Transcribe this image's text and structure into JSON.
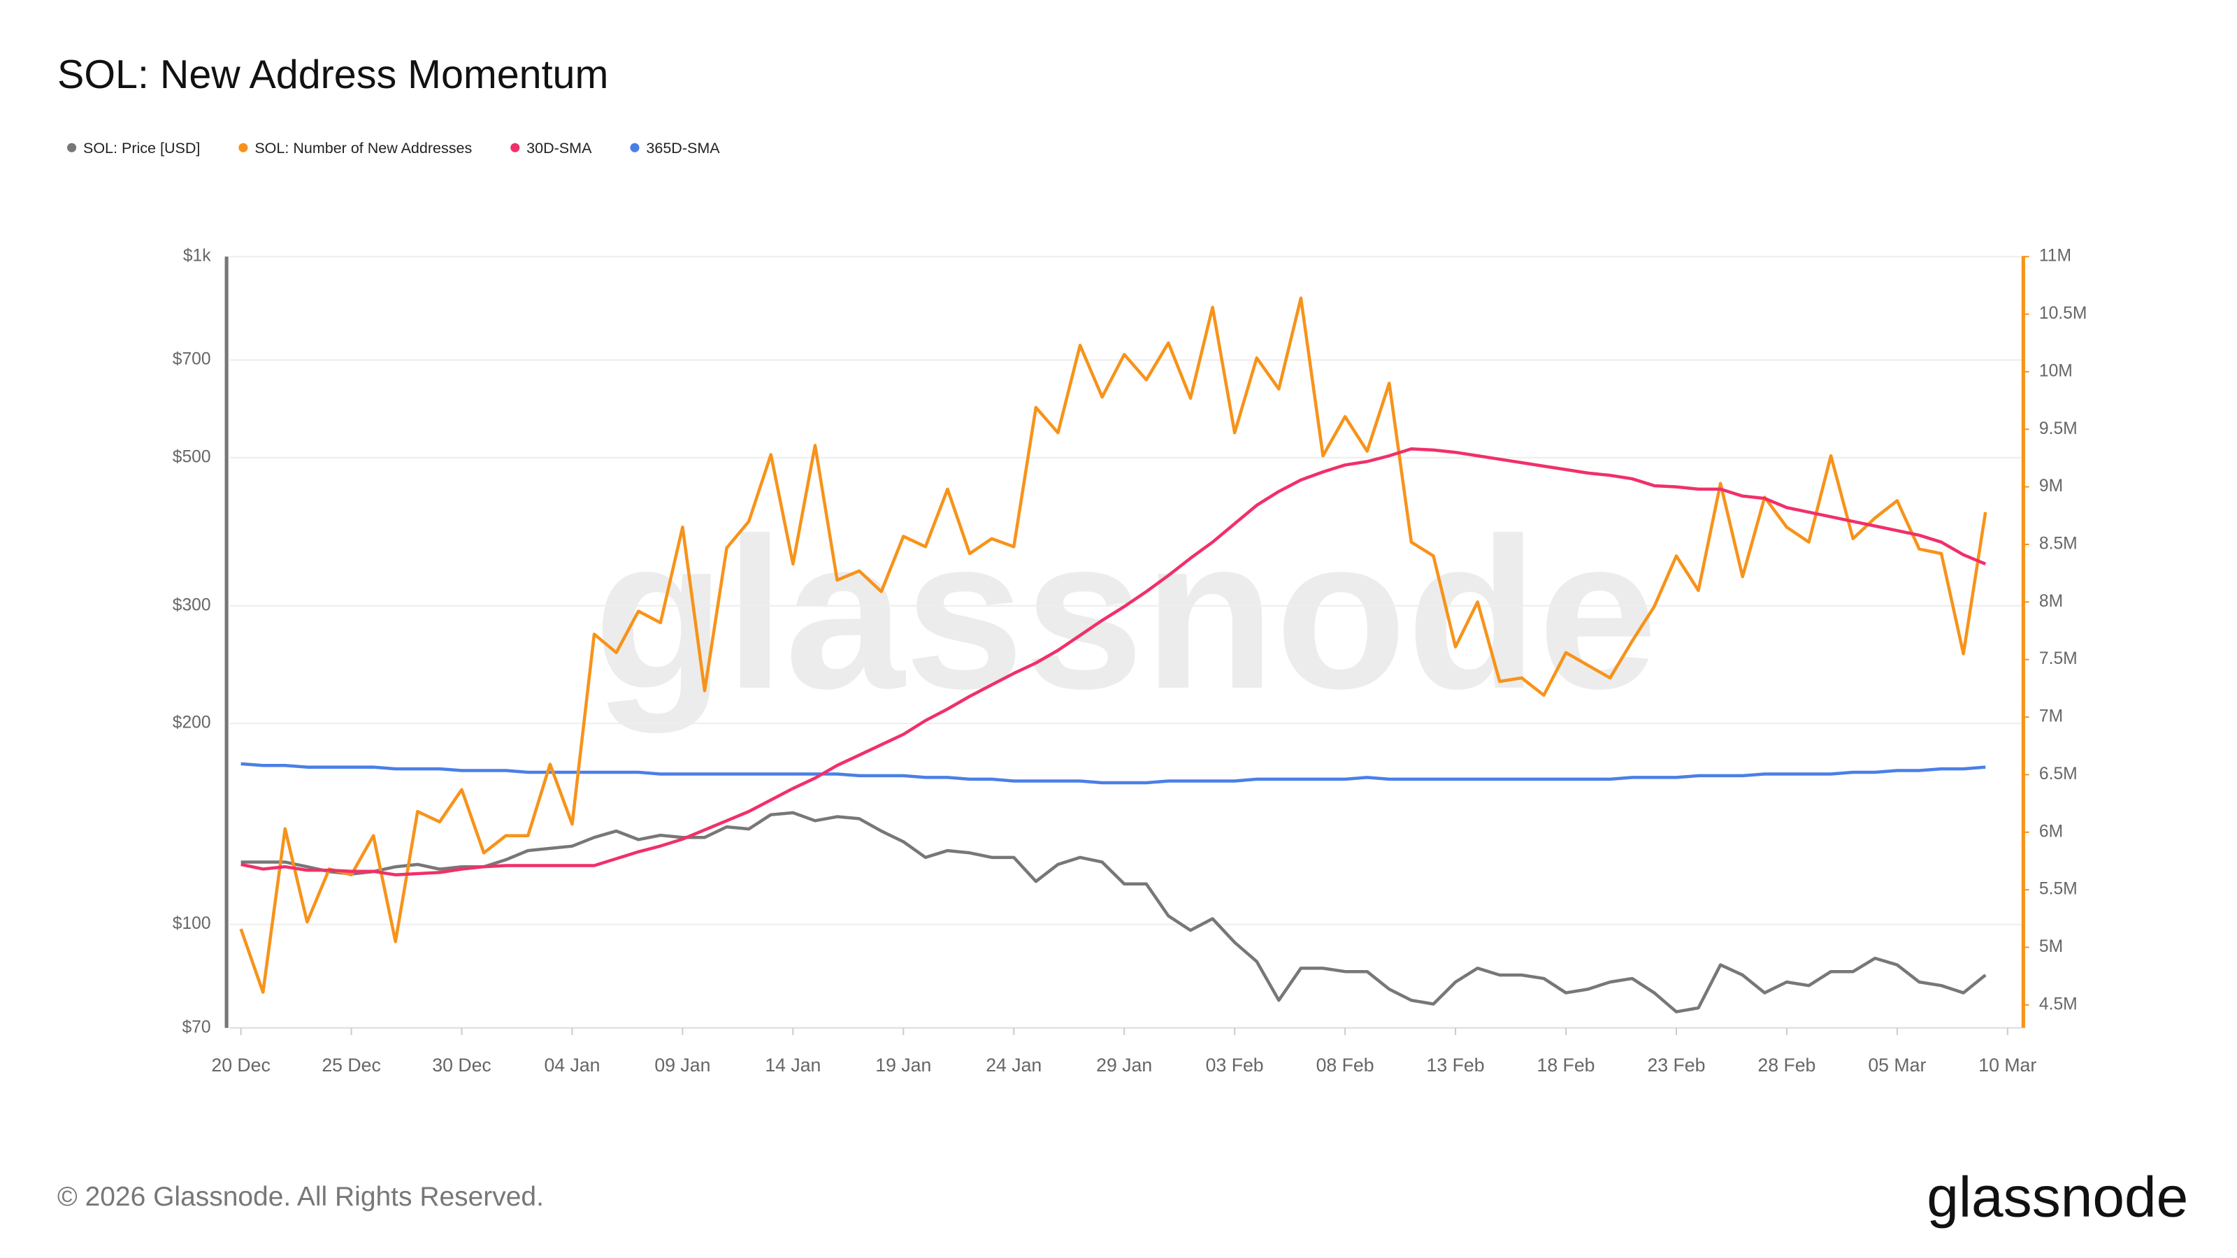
{
  "chart_data": {
    "type": "line",
    "title": "SOL: New Address Momentum",
    "footer": "© 2026 Glassnode. All Rights Reserved.",
    "logo": "glassnode",
    "watermark": "glassnode",
    "categories": [
      "20 Dec",
      null,
      null,
      null,
      null,
      "25 Dec",
      null,
      null,
      null,
      null,
      "30 Dec",
      null,
      null,
      null,
      null,
      "04 Jan",
      null,
      null,
      null,
      null,
      "09 Jan",
      null,
      null,
      null,
      null,
      "14 Jan",
      null,
      null,
      null,
      null,
      "19 Jan",
      null,
      null,
      null,
      null,
      "24 Jan",
      null,
      null,
      null,
      null,
      "29 Jan",
      null,
      null,
      null,
      null,
      "03 Feb",
      null,
      null,
      null,
      null,
      "08 Feb",
      null,
      null,
      null,
      null,
      "13 Feb",
      null,
      null,
      null,
      null,
      "18 Feb",
      null,
      null,
      null,
      null,
      "23 Feb",
      null,
      null,
      null,
      null,
      "28 Feb",
      null,
      null,
      null,
      null,
      "05 Mar",
      null,
      null,
      null,
      null,
      "10 Mar"
    ],
    "yscale": "log",
    "ylim": [
      70,
      1000
    ],
    "yticks": [
      {
        "value": 70,
        "label": "$70"
      },
      {
        "value": 100,
        "label": "$100"
      },
      {
        "value": 200,
        "label": "$200"
      },
      {
        "value": 300,
        "label": "$300"
      },
      {
        "value": 500,
        "label": "$500"
      },
      {
        "value": 700,
        "label": "$700"
      },
      {
        "value": 1000,
        "label": "$1k"
      }
    ],
    "y2lim": [
      4300000,
      11000000
    ],
    "y2ticks": [
      {
        "value": 4500000,
        "label": "4.5M"
      },
      {
        "value": 5000000,
        "label": "5M"
      },
      {
        "value": 5500000,
        "label": "5.5M"
      },
      {
        "value": 6000000,
        "label": "6M"
      },
      {
        "value": 6500000,
        "label": "6.5M"
      },
      {
        "value": 7000000,
        "label": "7M"
      },
      {
        "value": 7500000,
        "label": "7.5M"
      },
      {
        "value": 8000000,
        "label": "8M"
      },
      {
        "value": 8500000,
        "label": "8.5M"
      },
      {
        "value": 9000000,
        "label": "9M"
      },
      {
        "value": 9500000,
        "label": "9.5M"
      },
      {
        "value": 10000000,
        "label": "10M"
      },
      {
        "value": 10500000,
        "label": "10.5M"
      },
      {
        "value": 11000000,
        "label": "11M"
      }
    ],
    "grid": true,
    "legend": "top-left",
    "y2color": "#f7931a",
    "series": [
      {
        "name": "SOL: Price [USD]",
        "color": "#777777",
        "values": [
          124,
          124,
          124,
          122,
          120,
          119,
          120,
          122,
          123,
          121,
          122,
          122,
          125,
          129,
          130,
          131,
          135,
          138,
          134,
          136,
          135,
          135,
          140,
          139,
          146,
          147,
          143,
          145,
          144,
          138,
          133,
          126,
          129,
          128,
          126,
          126,
          116,
          123,
          126,
          124,
          115,
          115,
          103,
          98,
          102,
          94,
          88,
          77,
          86,
          86,
          85,
          85,
          80,
          77,
          76,
          82,
          86,
          84,
          84,
          83,
          79,
          80,
          82,
          83,
          79,
          74,
          75,
          87,
          84,
          79,
          82,
          81,
          85,
          85,
          89,
          87,
          82,
          81,
          79,
          84,
          null
        ]
      },
      {
        "name": "SOL: Number of New Addresses",
        "color": "#f7931a",
        "axis": "y2",
        "values": [
          5160000,
          4610000,
          6030000,
          5220000,
          5680000,
          5630000,
          5970000,
          5050000,
          6180000,
          6090000,
          6370000,
          5820000,
          5970000,
          5970000,
          6590000,
          6070000,
          7720000,
          7560000,
          7920000,
          7820000,
          8650000,
          7230000,
          8470000,
          8700000,
          9280000,
          8330000,
          9360000,
          8190000,
          8270000,
          8090000,
          8570000,
          8480000,
          8980000,
          8420000,
          8550000,
          8480000,
          9690000,
          9470000,
          10230000,
          9780000,
          10150000,
          9930000,
          10250000,
          9770000,
          10560000,
          9470000,
          10120000,
          9850000,
          10640000,
          9270000,
          9610000,
          9310000,
          9900000,
          8520000,
          8400000,
          7610000,
          8000000,
          7310000,
          7340000,
          7190000,
          7560000,
          7450000,
          7340000,
          7660000,
          7960000,
          8400000,
          8100000,
          9030000,
          8220000,
          8910000,
          8650000,
          8520000,
          9270000,
          8550000,
          8730000,
          8880000,
          8460000,
          8420000,
          7550000,
          8780000,
          null
        ]
      },
      {
        "name": "30D-SMA",
        "color": "#f0306a",
        "axis": "y2",
        "values": [
          5720000,
          5680000,
          5700000,
          5670000,
          5670000,
          5660000,
          5660000,
          5630000,
          5640000,
          5650000,
          5680000,
          5700000,
          5710000,
          5710000,
          5710000,
          5710000,
          5710000,
          5770000,
          5830000,
          5880000,
          5940000,
          6020000,
          6100000,
          6180000,
          6280000,
          6380000,
          6470000,
          6580000,
          6670000,
          6760000,
          6850000,
          6970000,
          7070000,
          7180000,
          7280000,
          7380000,
          7470000,
          7580000,
          7710000,
          7840000,
          7960000,
          8090000,
          8230000,
          8380000,
          8520000,
          8680000,
          8840000,
          8960000,
          9060000,
          9130000,
          9190000,
          9220000,
          9270000,
          9330000,
          9320000,
          9300000,
          9270000,
          9240000,
          9210000,
          9180000,
          9150000,
          9120000,
          9100000,
          9070000,
          9010000,
          9000000,
          8980000,
          8980000,
          8920000,
          8900000,
          8820000,
          8780000,
          8740000,
          8700000,
          8660000,
          8620000,
          8580000,
          8520000,
          8410000,
          8330000,
          null
        ]
      },
      {
        "name": "365D-SMA",
        "color": "#4a7fe8",
        "values": [
          174,
          173,
          173,
          172,
          172,
          172,
          172,
          171,
          171,
          171,
          170,
          170,
          170,
          169,
          169,
          169,
          169,
          169,
          169,
          168,
          168,
          168,
          168,
          168,
          168,
          168,
          168,
          168,
          167,
          167,
          167,
          166,
          166,
          165,
          165,
          164,
          164,
          164,
          164,
          163,
          163,
          163,
          164,
          164,
          164,
          164,
          165,
          165,
          165,
          165,
          165,
          166,
          165,
          165,
          165,
          165,
          165,
          165,
          165,
          165,
          165,
          165,
          165,
          166,
          166,
          166,
          167,
          167,
          167,
          168,
          168,
          168,
          168,
          169,
          169,
          170,
          170,
          171,
          171,
          172,
          null
        ]
      }
    ]
  }
}
